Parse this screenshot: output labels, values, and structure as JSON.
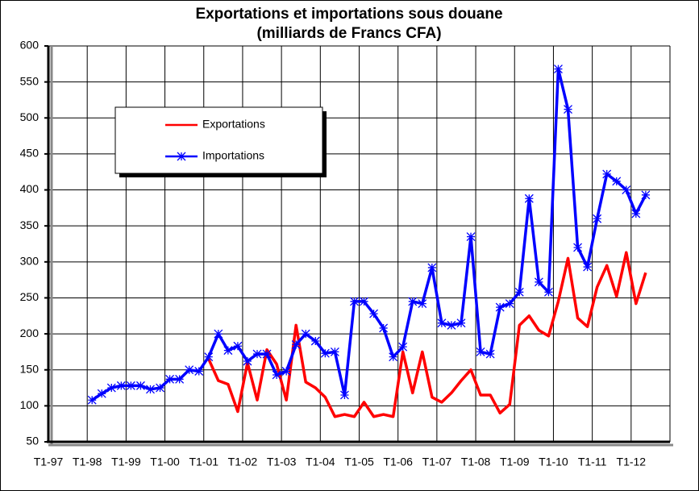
{
  "chart_data": {
    "type": "line",
    "title": "Exportations et importations sous douane",
    "subtitle": "(milliards de Francs CFA)",
    "categories": [
      "T1-97",
      null,
      null,
      null,
      "T1-98",
      null,
      null,
      null,
      "T1-99",
      null,
      null,
      null,
      "T1-00",
      null,
      null,
      null,
      "T1-01",
      null,
      null,
      null,
      "T1-02",
      null,
      null,
      null,
      "T1-03",
      null,
      null,
      null,
      "T1-04",
      null,
      null,
      null,
      "T1-05",
      null,
      null,
      null,
      "T1-06",
      null,
      null,
      null,
      "T1-07",
      null,
      null,
      null,
      "T1-08",
      null,
      null,
      null,
      "T1-09",
      null,
      null,
      null,
      "T1-10",
      null,
      null,
      null,
      "T1-11",
      null,
      null,
      null,
      "T1-12",
      null,
      null,
      null
    ],
    "series": [
      {
        "name": "Exportations",
        "color": "#ff0000",
        "marker": "none",
        "values": [
          null,
          null,
          null,
          null,
          null,
          null,
          null,
          null,
          null,
          null,
          null,
          null,
          null,
          null,
          null,
          null,
          165,
          135,
          130,
          92,
          160,
          108,
          178,
          158,
          108,
          212,
          133,
          125,
          112,
          85,
          88,
          85,
          105,
          85,
          88,
          85,
          175,
          118,
          175,
          112,
          105,
          118,
          135,
          150,
          115,
          115,
          90,
          102,
          212,
          225,
          205,
          197,
          245,
          305,
          222,
          210,
          265,
          295,
          252,
          313,
          242,
          285,
          null,
          null
        ]
      },
      {
        "name": "Importations",
        "color": "#0000ff",
        "marker": "asterisk",
        "values": [
          null,
          null,
          null,
          null,
          108,
          117,
          125,
          128,
          128,
          128,
          123,
          125,
          137,
          137,
          150,
          148,
          168,
          200,
          177,
          183,
          162,
          172,
          172,
          143,
          148,
          185,
          200,
          190,
          173,
          175,
          115,
          245,
          245,
          228,
          208,
          168,
          182,
          245,
          242,
          292,
          215,
          212,
          215,
          335,
          175,
          172,
          237,
          242,
          258,
          388,
          272,
          258,
          568,
          512,
          320,
          293,
          360,
          422,
          412,
          400,
          367,
          393,
          null,
          null
        ]
      }
    ],
    "ylim": [
      50,
      600
    ],
    "yticks": [
      50,
      100,
      150,
      200,
      250,
      300,
      350,
      400,
      450,
      500,
      550,
      600
    ],
    "grid": true,
    "legend": "upper-left"
  }
}
